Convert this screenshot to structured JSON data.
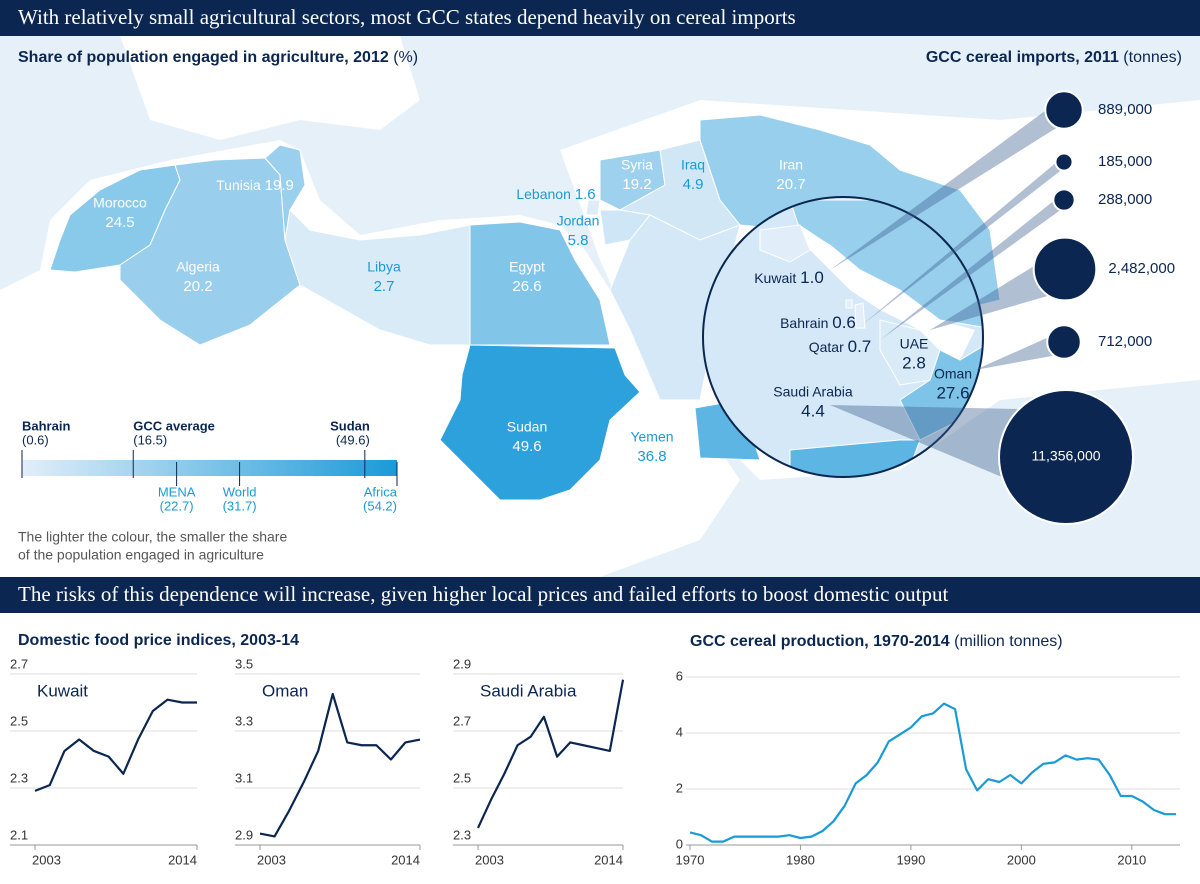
{
  "banner_top": "With relatively small agricultural sectors, most GCC states depend heavily on cereal imports",
  "banner_bottom": "The risks of this dependence will increase, given higher local prices and failed efforts to boost domestic output",
  "price_indices_title": "Domestic food price indices, 2003-14",
  "chart_data": [
    {
      "type": "choropleth",
      "title": "Share of population engaged in agriculture, 2012",
      "title_unit": "(%)",
      "regions": [
        "Morocco",
        "Algeria",
        "Tunisia",
        "Libya",
        "Egypt",
        "Sudan",
        "Lebanon",
        "Syria",
        "Iraq",
        "Jordan",
        "Iran",
        "Yemen",
        "Kuwait",
        "Bahrain",
        "Qatar",
        "UAE",
        "Oman",
        "Saudi Arabia"
      ],
      "values": [
        24.5,
        20.2,
        19.9,
        2.7,
        26.6,
        49.6,
        1.6,
        19.2,
        4.9,
        5.8,
        20.7,
        36.8,
        1,
        0.6,
        0.7,
        2.8,
        27.6,
        4.4
      ],
      "value_labels": [
        "24.5",
        "20.2",
        "19.9",
        "2.7",
        "26.6",
        "49.6",
        "1.6",
        "19.2",
        "4.9",
        "5.8",
        "20.7",
        "36.8",
        "1.0",
        "0.6",
        "0.7",
        "2.8",
        "27.6",
        "4.4"
      ],
      "colorscale": [
        "#e2eef9",
        "#1b9ad8"
      ],
      "scale": {
        "xlim": [
          0.6,
          54.2
        ],
        "markers": [
          "Bahrain",
          "GCC average",
          "Sudan",
          "MENA",
          "World",
          "Africa"
        ],
        "values": [
          0.6,
          16.5,
          49.6,
          22.7,
          31.7,
          54.2
        ],
        "value_labels": [
          "(0.6)",
          "(16.5)",
          "(49.6)",
          "(22.7)",
          "(31.7)",
          "(54.2)"
        ]
      },
      "note": [
        "The lighter the colour, the smaller the share",
        "of the population engaged in agriculture"
      ]
    },
    {
      "type": "bubble",
      "title": "GCC cereal imports, 2011",
      "title_unit": "(tonnes)",
      "color": "#0b2650",
      "values": [
        889000,
        185000,
        288000,
        2482000,
        712000,
        11356000
      ],
      "value_labels": [
        "889,000",
        "185,000",
        "288,000",
        "2,482,000",
        "712,000",
        "11,356,000"
      ]
    },
    {
      "type": "line",
      "x": [
        2003,
        2004,
        2005,
        2006,
        2007,
        2008,
        2009,
        2010,
        2011,
        2012,
        2013,
        2014
      ],
      "xlim": [
        2003,
        2014
      ],
      "xticks": [
        2003,
        2014
      ],
      "ylim": [
        2.1,
        2.7
      ],
      "yticks": [
        2.1,
        2.3,
        2.5,
        2.7
      ],
      "grid": true,
      "series": [
        {
          "name": "Kuwait",
          "color": "#0b2650",
          "values": [
            2.29,
            2.31,
            2.43,
            2.47,
            2.43,
            2.41,
            2.35,
            2.47,
            2.57,
            2.61,
            2.6,
            2.6
          ]
        }
      ]
    },
    {
      "type": "line",
      "x": [
        2003,
        2004,
        2005,
        2006,
        2007,
        2008,
        2009,
        2010,
        2011,
        2012,
        2013,
        2014
      ],
      "xlim": [
        2003,
        2014
      ],
      "xticks": [
        2003,
        2014
      ],
      "ylim": [
        2.9,
        3.5
      ],
      "yticks": [
        2.9,
        3.1,
        3.3,
        3.5
      ],
      "grid": true,
      "series": [
        {
          "name": "Oman",
          "color": "#0b2650",
          "values": [
            2.94,
            2.93,
            3.02,
            3.12,
            3.23,
            3.43,
            3.26,
            3.25,
            3.25,
            3.2,
            3.26,
            3.27
          ]
        }
      ]
    },
    {
      "type": "line",
      "x": [
        2003,
        2004,
        2005,
        2006,
        2007,
        2008,
        2009,
        2010,
        2011,
        2012,
        2013,
        2014
      ],
      "xlim": [
        2003,
        2014
      ],
      "xticks": [
        2003,
        2014
      ],
      "ylim": [
        2.3,
        2.9
      ],
      "yticks": [
        2.3,
        2.5,
        2.7,
        2.9
      ],
      "grid": true,
      "series": [
        {
          "name": "Saudi Arabia",
          "color": "#0b2650",
          "values": [
            2.36,
            2.46,
            2.55,
            2.65,
            2.68,
            2.75,
            2.61,
            2.66,
            2.65,
            2.64,
            2.63,
            2.88
          ]
        }
      ]
    },
    {
      "type": "line",
      "title": "GCC cereal production, 1970-2014",
      "title_unit": "(million tonnes)",
      "x": [
        1970,
        1971,
        1972,
        1973,
        1974,
        1975,
        1976,
        1977,
        1978,
        1979,
        1980,
        1981,
        1982,
        1983,
        1984,
        1985,
        1986,
        1987,
        1988,
        1989,
        1990,
        1991,
        1992,
        1993,
        1994,
        1995,
        1996,
        1997,
        1998,
        1999,
        2000,
        2001,
        2002,
        2003,
        2004,
        2005,
        2006,
        2007,
        2008,
        2009,
        2010,
        2011,
        2012,
        2013,
        2014
      ],
      "xlim": [
        1970,
        2014
      ],
      "xticks": [
        1970,
        1980,
        1990,
        2000,
        2010
      ],
      "ylim": [
        0,
        6
      ],
      "yticks": [
        0,
        2,
        4,
        6
      ],
      "grid": true,
      "series": [
        {
          "color": "#1a9ad6",
          "values": [
            0.45,
            0.35,
            0.12,
            0.12,
            0.3,
            0.3,
            0.3,
            0.3,
            0.3,
            0.35,
            0.25,
            0.3,
            0.5,
            0.85,
            1.4,
            2.2,
            2.5,
            2.95,
            3.7,
            3.95,
            4.2,
            4.6,
            4.7,
            5.05,
            4.85,
            2.7,
            1.95,
            2.35,
            2.25,
            2.5,
            2.2,
            2.6,
            2.9,
            2.95,
            3.2,
            3.05,
            3.1,
            3.05,
            2.5,
            1.75,
            1.75,
            1.55,
            1.25,
            1.1,
            1.1
          ]
        }
      ]
    }
  ]
}
